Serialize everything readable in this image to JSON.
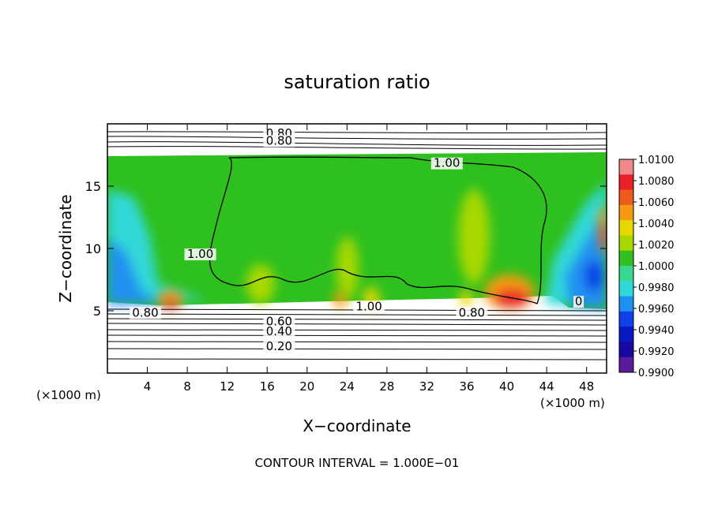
{
  "chart_data": {
    "type": "heatmap",
    "title": "saturation ratio",
    "xlabel": "X−coordinate",
    "ylabel": "Z−coordinate",
    "x_unit": "(×1000 m)",
    "y_unit": "(×1000 m)",
    "xlim": [
      0,
      50
    ],
    "ylim": [
      0,
      20
    ],
    "x_ticks": [
      4,
      8,
      12,
      16,
      20,
      24,
      28,
      32,
      36,
      40,
      44,
      48
    ],
    "y_ticks": [
      5,
      10,
      15
    ],
    "footer": "CONTOUR INTERVAL = 1.000E−01",
    "colorbar": {
      "min": 0.99,
      "max": 1.01,
      "labels": [
        "1.0100",
        "1.0080",
        "1.0060",
        "1.0040",
        "1.0020",
        "1.0000",
        "0.9980",
        "0.9960",
        "0.9940",
        "0.9920",
        "0.9900"
      ],
      "colors": [
        "#f08a8a",
        "#e8202a",
        "#ee5a1c",
        "#f59a10",
        "#e8d800",
        "#a8d800",
        "#30c020",
        "#38d890",
        "#30d8d8",
        "#2090f0",
        "#1040e8",
        "#0818c0",
        "#1808a0",
        "#5a1a9a"
      ]
    },
    "contour_labels": [
      {
        "text": "0.80",
        "x": 17.2,
        "z": 19.0
      },
      {
        "text": "0.80",
        "x": 17.2,
        "z": 18.4
      },
      {
        "text": "1.00",
        "x": 34.0,
        "z": 16.6
      },
      {
        "text": "1.00",
        "x": 9.3,
        "z": 9.3
      },
      {
        "text": "1.00",
        "x": 26.2,
        "z": 5.1
      },
      {
        "text": "0.80",
        "x": 3.8,
        "z": 4.6
      },
      {
        "text": "0.80",
        "x": 36.5,
        "z": 4.6
      },
      {
        "text": "0.60",
        "x": 17.2,
        "z": 3.9
      },
      {
        "text": "0.40",
        "x": 17.2,
        "z": 3.1
      },
      {
        "text": "0.20",
        "x": 17.2,
        "z": 1.9
      },
      {
        "text": "0",
        "x": 47.2,
        "z": 5.5
      }
    ]
  }
}
